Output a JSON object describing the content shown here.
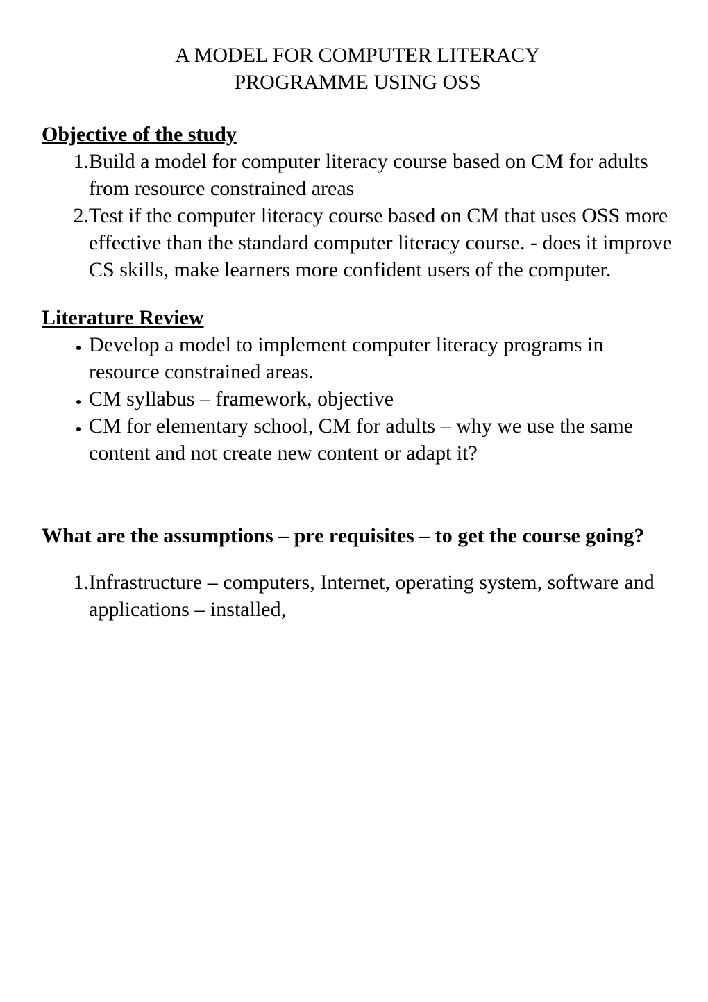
{
  "title": {
    "line1": "A MODEL FOR COMPUTER LITERACY",
    "line2": "PROGRAMME USING OSS"
  },
  "sections": {
    "objective": {
      "heading": "Objective of the study",
      "items": [
        "Build a model for computer literacy course based on CM for adults from resource constrained areas",
        "Test if the computer literacy course based on CM that uses OSS more effective than the standard computer literacy course. - does it improve CS skills, make learners more confident users of the computer."
      ]
    },
    "literature": {
      "heading": "Literature Review",
      "items": [
        "Develop a model to implement computer literacy programs in resource constrained areas.",
        "CM syllabus – framework, objective",
        "CM for elementary school, CM for adults – why we use the same content and not create new content or adapt it?"
      ]
    },
    "assumptions": {
      "heading": "What are the assumptions – pre requisites – to get the course going?",
      "items": [
        "Infrastructure – computers, Internet, operating system, software and applications – installed,"
      ]
    }
  },
  "colors": {
    "background": "#ffffff",
    "text": "#000000"
  },
  "typography": {
    "font_family": "Times New Roman",
    "body_fontsize": 30,
    "heading_fontsize": 30,
    "title_fontsize": 30
  }
}
